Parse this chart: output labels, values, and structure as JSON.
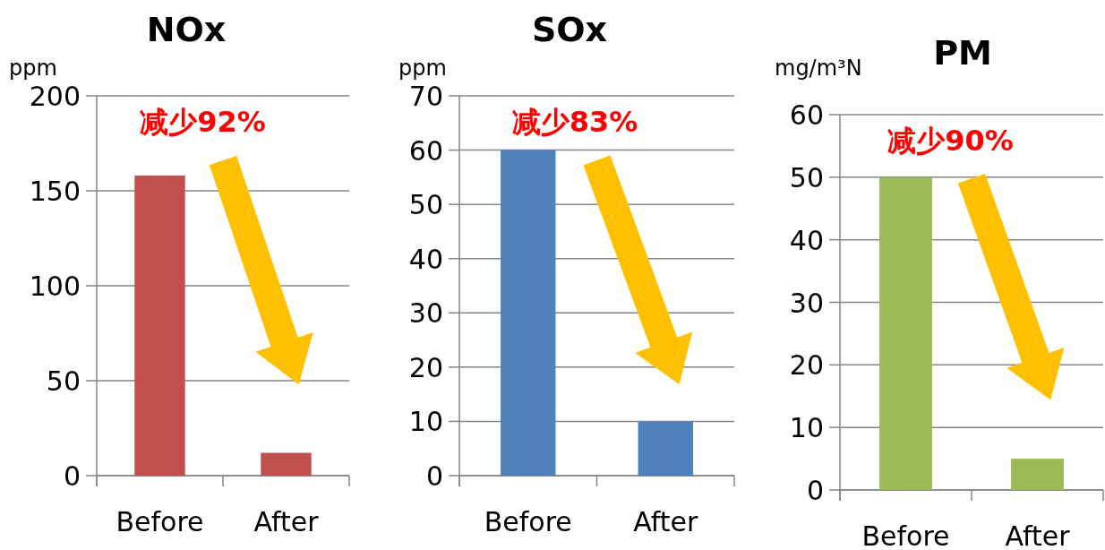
{
  "chart_data": [
    {
      "type": "bar",
      "title": "NOx",
      "ylabel": "ppm",
      "categories": [
        "Before",
        "After"
      ],
      "values": [
        158,
        12
      ],
      "color": "#c0504d",
      "ylim": [
        0,
        200
      ],
      "yticks": [
        0,
        50,
        100,
        150,
        200
      ],
      "grid": "y",
      "annotations": [
        "减少92%"
      ]
    },
    {
      "type": "bar",
      "title": "SOx",
      "ylabel": "ppm",
      "categories": [
        "Before",
        "After"
      ],
      "values": [
        60,
        10
      ],
      "color": "#4f81bd",
      "ylim": [
        0,
        70
      ],
      "yticks": [
        0,
        10,
        20,
        30,
        40,
        50,
        60,
        70
      ],
      "grid": "y",
      "annotations": [
        "减少83%"
      ]
    },
    {
      "type": "bar",
      "title": "PM",
      "ylabel": "mg/m³N",
      "categories": [
        "Before",
        "After"
      ],
      "values": [
        50,
        5
      ],
      "color": "#9bbb59",
      "ylim": [
        0,
        60
      ],
      "yticks": [
        0,
        10,
        20,
        30,
        40,
        50,
        60
      ],
      "grid": "y",
      "annotations": [
        "减少90%"
      ]
    }
  ]
}
